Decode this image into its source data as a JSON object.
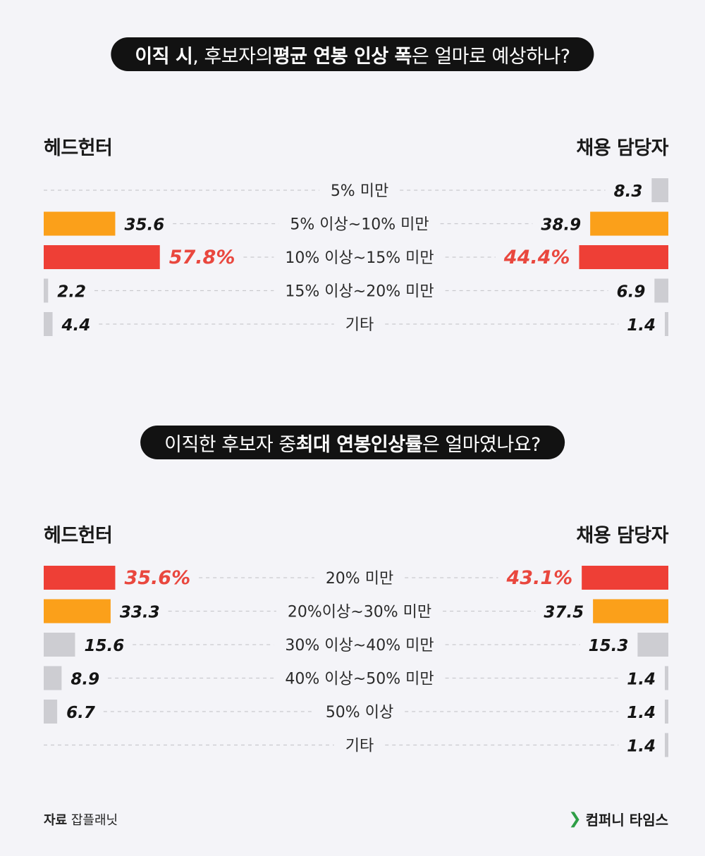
{
  "charts": [
    {
      "title": {
        "segments": [
          {
            "text": "이직 시",
            "bold": true
          },
          {
            "text": ", 후보자의 ",
            "bold": false
          },
          {
            "text": "평균 연봉 인상 폭",
            "bold": true
          },
          {
            "text": "은 얼마로 예상하나?",
            "bold": false
          }
        ]
      },
      "left_label": "헤드헌터",
      "right_label": "채용 담당자"
    },
    {
      "title": {
        "segments": [
          {
            "text": "이직한 후보자 중 ",
            "bold": false
          },
          {
            "text": "최대 연봉인상률",
            "bold": true
          },
          {
            "text": "은 얼마였나요?",
            "bold": false
          }
        ]
      },
      "left_label": "헤드헌터",
      "right_label": "채용 담당자"
    }
  ],
  "chart_data": [
    {
      "type": "bar",
      "orientation": "horizontal-butterfly",
      "categories": [
        "5% 미만",
        "5% 이상~10% 미만",
        "10% 이상~15% 미만",
        "15% 이상~20% 미만",
        "기타"
      ],
      "series": [
        {
          "name": "헤드헌터",
          "values": [
            null,
            35.6,
            57.8,
            2.2,
            4.4
          ],
          "labels": [
            "",
            "35.6",
            "57.8%",
            "2.2",
            "4.4"
          ]
        },
        {
          "name": "채용 담당자",
          "values": [
            8.3,
            38.9,
            44.4,
            6.9,
            1.4
          ],
          "labels": [
            "8.3",
            "38.9",
            "44.4%",
            "6.9",
            "1.4"
          ]
        }
      ],
      "highlight": {
        "top": 2,
        "second": 1
      },
      "colors": {
        "top": "#ee3f36",
        "second": "#fba01a",
        "other": "#cdcdd2",
        "top_label": "#e9473e"
      }
    },
    {
      "type": "bar",
      "orientation": "horizontal-butterfly",
      "categories": [
        "20% 미만",
        "20%이상~30% 미만",
        "30% 이상~40% 미만",
        "40% 이상~50% 미만",
        "50% 이상",
        "기타"
      ],
      "series": [
        {
          "name": "헤드헌터",
          "values": [
            35.6,
            33.3,
            15.6,
            8.9,
            6.7,
            null
          ],
          "labels": [
            "35.6%",
            "33.3",
            "15.6",
            "8.9",
            "6.7",
            ""
          ]
        },
        {
          "name": "채용 담당자",
          "values": [
            43.1,
            37.5,
            15.3,
            1.4,
            1.4,
            1.4
          ],
          "labels": [
            "43.1%",
            "37.5",
            "15.3",
            "1.4",
            "1.4",
            "1.4"
          ]
        }
      ],
      "highlight": {
        "top": 0,
        "second": 1
      },
      "colors": {
        "top": "#ee3f36",
        "second": "#fba01a",
        "other": "#cdcdd2",
        "top_label": "#e9473e"
      }
    }
  ],
  "footer": {
    "source_label": "자료",
    "source_name": "잡플래닛",
    "brand_name": "컴퍼니 타임스",
    "brand_icon": "chevron-right-icon"
  }
}
